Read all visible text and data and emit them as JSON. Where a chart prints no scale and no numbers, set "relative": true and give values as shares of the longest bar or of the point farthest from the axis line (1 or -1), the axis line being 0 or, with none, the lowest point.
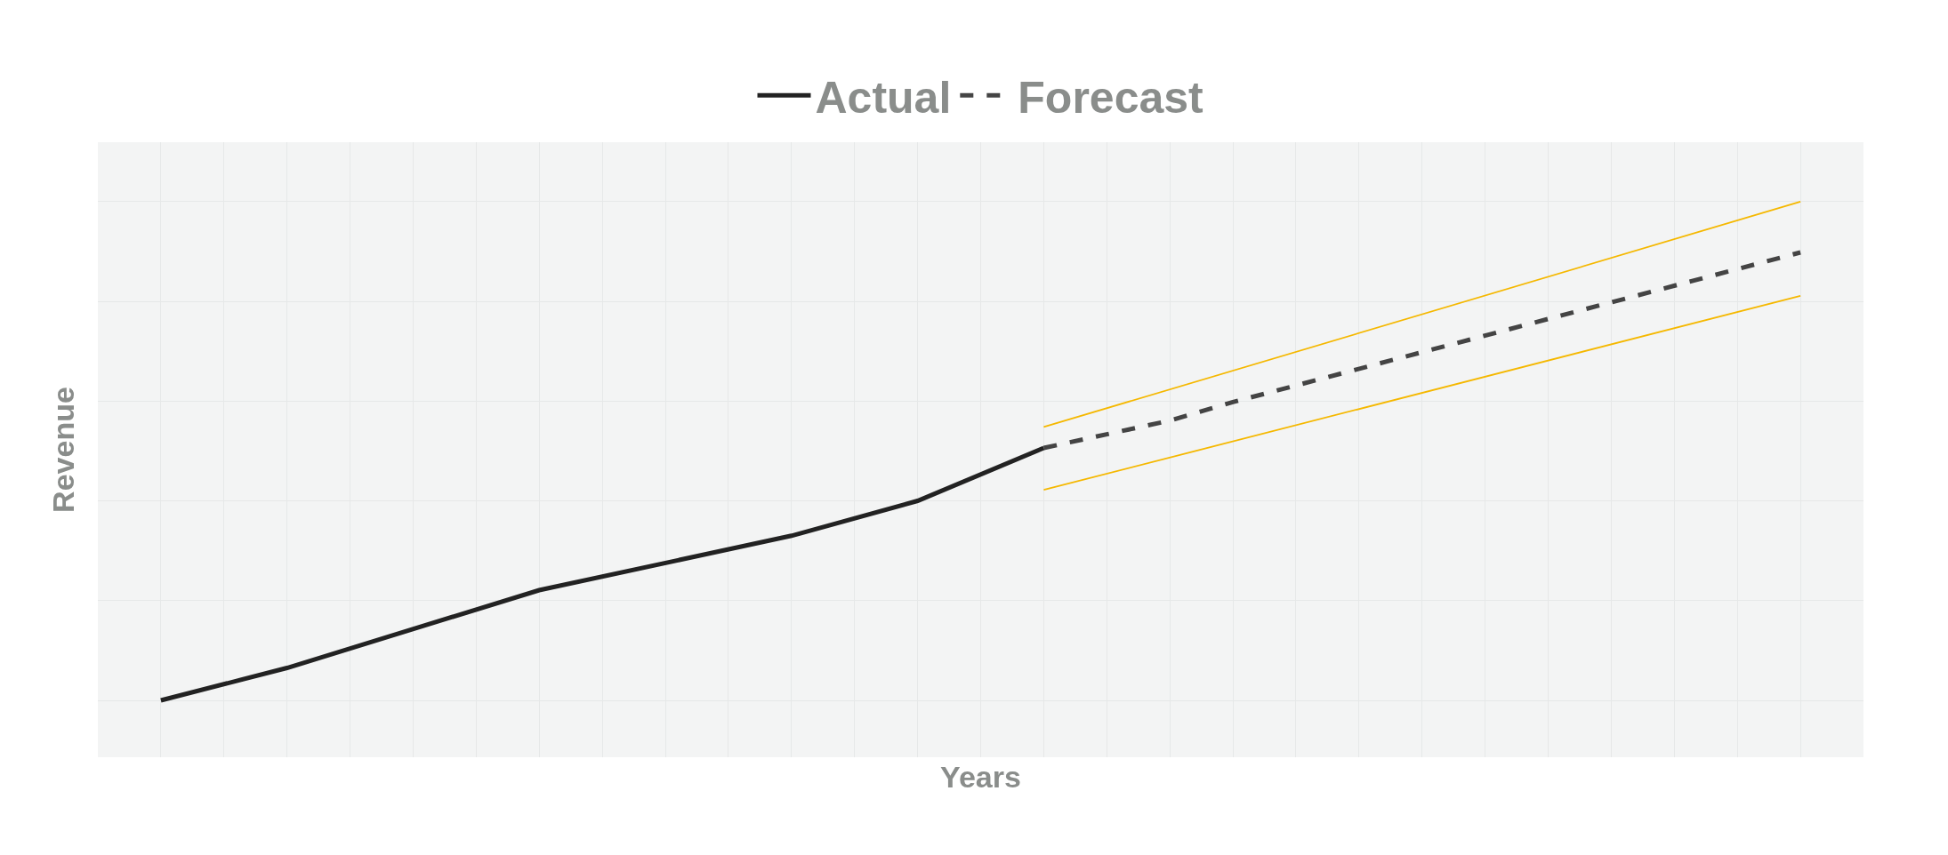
{
  "chart_data": {
    "type": "line",
    "relative": true,
    "xlabel": "Years",
    "ylabel": "Revenue",
    "categories": [
      null,
      null,
      null,
      null,
      null,
      null,
      null,
      null,
      null,
      null,
      null,
      null,
      null,
      null,
      null,
      null,
      null,
      null,
      null,
      null,
      null,
      null,
      null,
      null,
      null,
      null,
      null,
      null,
      null
    ],
    "series": [
      {
        "name": "Actual",
        "color": "#222222",
        "line_style": "solid",
        "values": [
          null,
          0,
          null,
          0.065,
          null,
          null,
          null,
          0.221,
          null,
          null,
          null,
          0.33,
          null,
          0.4,
          null,
          0.506,
          null,
          null,
          null,
          null,
          null,
          null,
          null,
          null,
          null,
          null,
          null,
          null,
          null
        ]
      },
      {
        "name": "Forecast",
        "color": "#444444",
        "line_style": "dashed",
        "values": [
          null,
          null,
          null,
          null,
          null,
          null,
          null,
          null,
          null,
          null,
          null,
          null,
          null,
          null,
          null,
          0.506,
          null,
          0.561,
          0.598,
          null,
          null,
          null,
          null,
          null,
          null,
          null,
          null,
          0.898,
          null
        ]
      },
      {
        "color": "#f5b800",
        "line_style": "solid",
        "values": [
          null,
          null,
          null,
          null,
          null,
          null,
          null,
          null,
          null,
          null,
          null,
          null,
          null,
          null,
          null,
          0.548,
          null,
          null,
          null,
          null,
          null,
          null,
          null,
          null,
          null,
          null,
          null,
          1,
          null
        ]
      },
      {
        "color": "#f5b800",
        "line_style": "solid",
        "values": [
          null,
          null,
          null,
          null,
          null,
          null,
          null,
          null,
          null,
          null,
          null,
          null,
          null,
          null,
          null,
          0.422,
          null,
          null,
          null,
          null,
          null,
          null,
          null,
          null,
          null,
          null,
          null,
          0.811,
          null
        ]
      }
    ],
    "grid": true,
    "legend": "top"
  }
}
